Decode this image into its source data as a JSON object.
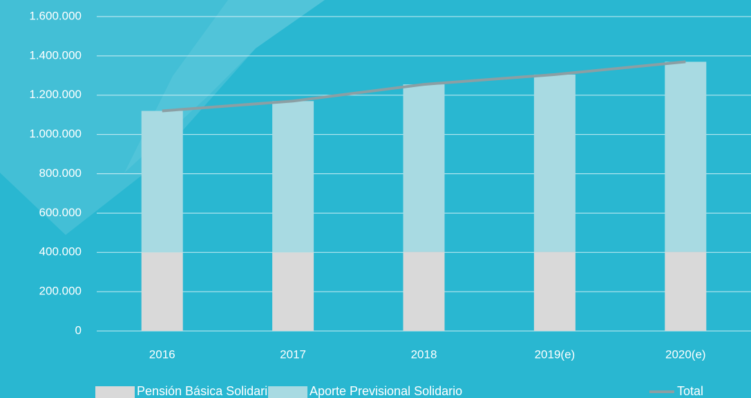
{
  "chart_data": {
    "type": "bar",
    "stacked": true,
    "categories": [
      "2016",
      "2017",
      "2018",
      "2019(e)",
      "2020(e)"
    ],
    "series": [
      {
        "name": "Pensión Básica Solidaria",
        "color": "#d9d9d9",
        "values": [
          400000,
          400000,
          403000,
          403000,
          403000
        ]
      },
      {
        "name": "Aporte Previsional Solidario",
        "color": "#a8dae2",
        "values": [
          720000,
          770000,
          852000,
          902000,
          967000
        ]
      },
      {
        "name": "Total",
        "type": "line",
        "color": "#8b9fa4",
        "values": [
          1120000,
          1170000,
          1255000,
          1305000,
          1370000
        ]
      }
    ],
    "ylim": [
      0,
      1600000
    ],
    "yticks": [
      0,
      {
        "value": 200000,
        "label": "200.000"
      },
      {
        "value": 400000,
        "label": "400.000"
      },
      {
        "value": 600000,
        "label": "600.000"
      },
      {
        "value": 800000,
        "label": "800.000"
      },
      {
        "value": 1000000,
        "label": "1.000.000"
      },
      {
        "value": 1200000,
        "label": "1.200.000"
      },
      {
        "value": 1400000,
        "label": "1.400.000"
      },
      {
        "value": 1600000,
        "label": "1.600.000"
      }
    ],
    "grid": true,
    "legend": "bottom"
  }
}
